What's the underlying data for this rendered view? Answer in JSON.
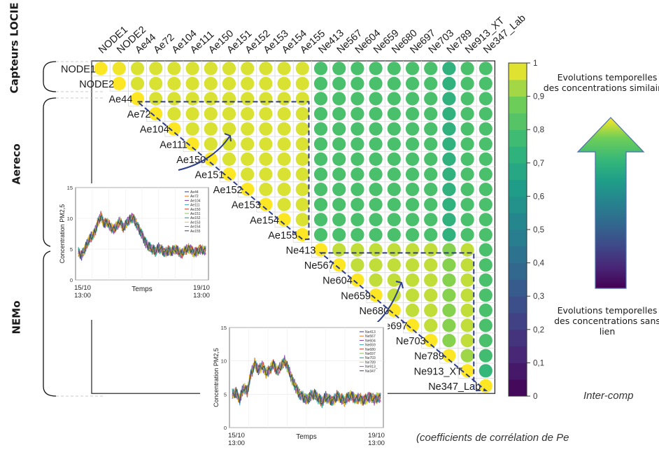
{
  "chart_data": {
    "type": "heatmap",
    "rows": [
      "NODE1",
      "NODE2",
      "Ae44",
      "Ae72",
      "Ae104",
      "Ae111",
      "Ae150",
      "Ae151",
      "Ae152",
      "Ae153",
      "Ae154",
      "Ae155",
      "Ne413",
      "Ne567",
      "Ne604",
      "Ne659",
      "Ne680",
      "Ne697",
      "Ne703",
      "Ne789",
      "Ne913_XT",
      "Ne347_Lab"
    ],
    "columns": [
      "NODE1",
      "NODE2",
      "Ae44",
      "Ae72",
      "Ae104",
      "Ae111",
      "Ae150",
      "Ae151",
      "Ae152",
      "Ae153",
      "Ae154",
      "Ae155",
      "Ne413",
      "Ne567",
      "Ne604",
      "Ne659",
      "Ne680",
      "Ne697",
      "Ne703",
      "Ne789",
      "Ne913_XT",
      "Ne347_Lab"
    ],
    "matrix": [
      [
        1,
        0.99,
        0.97,
        0.97,
        0.97,
        0.97,
        0.97,
        0.97,
        0.97,
        0.97,
        0.97,
        0.97,
        0.8,
        0.8,
        0.8,
        0.8,
        0.8,
        0.8,
        0.8,
        0.72,
        0.8,
        0.8
      ],
      [
        null,
        1,
        0.97,
        0.97,
        0.97,
        0.97,
        0.97,
        0.97,
        0.97,
        0.97,
        0.97,
        0.97,
        0.8,
        0.8,
        0.8,
        0.8,
        0.8,
        0.8,
        0.8,
        0.72,
        0.8,
        0.8
      ],
      [
        null,
        null,
        1,
        0.97,
        0.97,
        0.97,
        0.97,
        0.97,
        0.97,
        0.97,
        0.97,
        0.97,
        0.8,
        0.8,
        0.8,
        0.8,
        0.8,
        0.8,
        0.8,
        0.72,
        0.8,
        0.8
      ],
      [
        null,
        null,
        null,
        1,
        0.97,
        0.97,
        0.97,
        0.97,
        0.97,
        0.97,
        0.97,
        0.97,
        0.8,
        0.8,
        0.8,
        0.8,
        0.8,
        0.8,
        0.8,
        0.72,
        0.8,
        0.8
      ],
      [
        null,
        null,
        null,
        null,
        1,
        0.97,
        0.97,
        0.97,
        0.97,
        0.97,
        0.97,
        0.97,
        0.8,
        0.8,
        0.8,
        0.8,
        0.8,
        0.8,
        0.8,
        0.72,
        0.8,
        0.8
      ],
      [
        null,
        null,
        null,
        null,
        null,
        1,
        0.97,
        0.97,
        0.97,
        0.97,
        0.97,
        0.97,
        0.8,
        0.8,
        0.8,
        0.8,
        0.8,
        0.8,
        0.8,
        0.72,
        0.8,
        0.8
      ],
      [
        null,
        null,
        null,
        null,
        null,
        null,
        1,
        0.97,
        0.97,
        0.97,
        0.97,
        0.97,
        0.8,
        0.8,
        0.8,
        0.8,
        0.8,
        0.8,
        0.8,
        0.72,
        0.8,
        0.8
      ],
      [
        null,
        null,
        null,
        null,
        null,
        null,
        null,
        1,
        0.97,
        0.97,
        0.97,
        0.97,
        0.8,
        0.8,
        0.8,
        0.8,
        0.8,
        0.8,
        0.8,
        0.72,
        0.8,
        0.8
      ],
      [
        null,
        null,
        null,
        null,
        null,
        null,
        null,
        null,
        1,
        0.97,
        0.97,
        0.97,
        0.8,
        0.8,
        0.8,
        0.8,
        0.8,
        0.8,
        0.8,
        0.72,
        0.8,
        0.8
      ],
      [
        null,
        null,
        null,
        null,
        null,
        null,
        null,
        null,
        null,
        1,
        0.97,
        0.97,
        0.8,
        0.8,
        0.8,
        0.8,
        0.8,
        0.8,
        0.8,
        0.72,
        0.8,
        0.8
      ],
      [
        null,
        null,
        null,
        null,
        null,
        null,
        null,
        null,
        null,
        null,
        1,
        0.97,
        0.8,
        0.8,
        0.8,
        0.8,
        0.8,
        0.8,
        0.8,
        0.72,
        0.8,
        0.8
      ],
      [
        null,
        null,
        null,
        null,
        null,
        null,
        null,
        null,
        null,
        null,
        null,
        1,
        0.8,
        0.8,
        0.8,
        0.8,
        0.8,
        0.8,
        0.8,
        0.72,
        0.8,
        0.8
      ],
      [
        null,
        null,
        null,
        null,
        null,
        null,
        null,
        null,
        null,
        null,
        null,
        null,
        1,
        0.95,
        0.95,
        0.95,
        0.95,
        0.95,
        0.95,
        0.9,
        0.95,
        0.8
      ],
      [
        null,
        null,
        null,
        null,
        null,
        null,
        null,
        null,
        null,
        null,
        null,
        null,
        null,
        1,
        0.95,
        0.95,
        0.95,
        0.95,
        0.95,
        0.9,
        0.95,
        0.8
      ],
      [
        null,
        null,
        null,
        null,
        null,
        null,
        null,
        null,
        null,
        null,
        null,
        null,
        null,
        null,
        1,
        0.95,
        0.95,
        0.95,
        0.95,
        0.9,
        0.95,
        0.8
      ],
      [
        null,
        null,
        null,
        null,
        null,
        null,
        null,
        null,
        null,
        null,
        null,
        null,
        null,
        null,
        null,
        1,
        0.95,
        0.95,
        0.95,
        0.9,
        0.95,
        0.8
      ],
      [
        null,
        null,
        null,
        null,
        null,
        null,
        null,
        null,
        null,
        null,
        null,
        null,
        null,
        null,
        null,
        null,
        1,
        0.95,
        0.95,
        0.9,
        0.95,
        0.8
      ],
      [
        null,
        null,
        null,
        null,
        null,
        null,
        null,
        null,
        null,
        null,
        null,
        null,
        null,
        null,
        null,
        null,
        null,
        1,
        0.95,
        0.9,
        0.95,
        0.8
      ],
      [
        null,
        null,
        null,
        null,
        null,
        null,
        null,
        null,
        null,
        null,
        null,
        null,
        null,
        null,
        null,
        null,
        null,
        null,
        1,
        0.9,
        0.95,
        0.8
      ],
      [
        null,
        null,
        null,
        null,
        null,
        null,
        null,
        null,
        null,
        null,
        null,
        null,
        null,
        null,
        null,
        null,
        null,
        null,
        null,
        1,
        0.92,
        0.78
      ],
      [
        null,
        null,
        null,
        null,
        null,
        null,
        null,
        null,
        null,
        null,
        null,
        null,
        null,
        null,
        null,
        null,
        null,
        null,
        null,
        null,
        1,
        0.75
      ],
      [
        null,
        null,
        null,
        null,
        null,
        null,
        null,
        null,
        null,
        null,
        null,
        null,
        null,
        null,
        null,
        null,
        null,
        null,
        null,
        null,
        null,
        1
      ]
    ],
    "colorbar": {
      "min": 0,
      "max": 1,
      "ticks": [
        0,
        0.1,
        0.2,
        0.3,
        0.4,
        0.5,
        0.6,
        0.7,
        0.8,
        0.9,
        1
      ],
      "tick_labels": [
        "0",
        "0,1",
        "0,2",
        "0,3",
        "0,4",
        "0,5",
        "0,6",
        "0,7",
        "0,8",
        "0,9",
        "1"
      ]
    },
    "groups": [
      {
        "label": "Capteurs LOCIE",
        "rows": [
          "NODE1",
          "NODE2"
        ]
      },
      {
        "label": "Aereco",
        "rows": [
          "Ae44",
          "Ae155"
        ]
      },
      {
        "label": "NEMo",
        "rows": [
          "Ne413",
          "Ne347_Lab"
        ]
      }
    ],
    "annotations": {
      "top": "Evolutions temporelles des concentrations similaires",
      "bottom": "Evolutions temporelles des concentrations sans lien"
    },
    "insets": [
      {
        "type": "line",
        "ylabel": "Concentration PM2,5",
        "xlabel": "Temps",
        "ylim": [
          0,
          15
        ],
        "yticks": [
          "0",
          "5",
          "10",
          "15"
        ],
        "xticks": [
          "15/10\n13:00",
          "19/10\n13:00"
        ],
        "legend": [
          "Ae44",
          "Ae72",
          "Ae104",
          "Ae111",
          "Ae150",
          "Ae151",
          "Ae152",
          "Ae153",
          "Ae154",
          "Ae155"
        ],
        "series_profile": [
          4.5,
          4.0,
          5.0,
          6.2,
          7.0,
          7.6,
          9.2,
          10.4,
          9.1,
          9.4,
          8.6,
          8.2,
          8.8,
          9.6,
          8.4,
          9.2,
          9.8,
          10.1,
          9.2,
          8.2,
          7.2,
          6.0,
          5.4,
          5.0,
          4.6,
          5.2,
          4.9,
          4.4,
          4.8,
          4.6,
          5.0,
          4.8,
          4.2,
          4.7,
          5.1,
          5.0,
          4.4,
          4.6,
          5.0,
          4.8
        ]
      },
      {
        "type": "line",
        "ylabel": "Concentration PM2,5",
        "xlabel": "Temps",
        "ylim": [
          0,
          15
        ],
        "yticks": [
          "0",
          "5",
          "10",
          "15"
        ],
        "xticks": [
          "15/10\n13:00",
          "19/10\n13:00"
        ],
        "legend": [
          "Ne413",
          "Ne567",
          "Ne604",
          "Ne659",
          "Ne680",
          "Ne697",
          "Ne703",
          "Ne789",
          "Ne913_",
          "Ne347"
        ],
        "series_profile": [
          5.0,
          5.3,
          4.2,
          6.0,
          5.4,
          8.0,
          9.6,
          8.6,
          9.3,
          8.2,
          8.6,
          9.6,
          8.4,
          9.2,
          10.0,
          8.8,
          7.2,
          6.0,
          5.0,
          4.6,
          4.2,
          4.8,
          5.0,
          4.4,
          3.8,
          4.6,
          4.2,
          4.0,
          4.8,
          4.4,
          4.0,
          4.6,
          4.8,
          4.2,
          4.5,
          4.0,
          4.4,
          4.6,
          4.2,
          4.5
        ]
      }
    ],
    "caption_line1": "Inter-comp",
    "caption_line2": "(coefficients de corrélation de Pe"
  }
}
